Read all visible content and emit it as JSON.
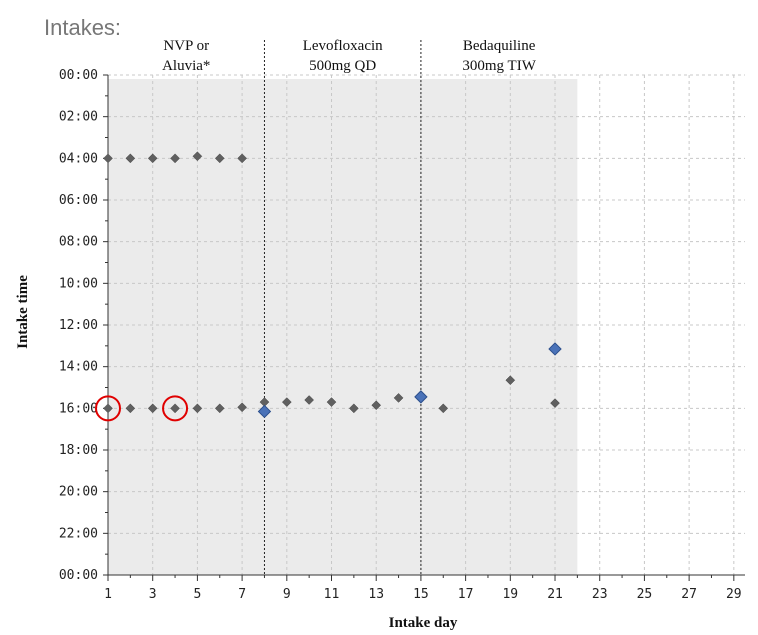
{
  "page_title": "Intakes:",
  "chart_data": {
    "type": "scatter",
    "title": "",
    "xlabel": "Intake day",
    "ylabel": "Intake time",
    "xlim": [
      1,
      29.5
    ],
    "ylim": [
      0,
      24
    ],
    "x_ticks": [
      "1",
      "3",
      "5",
      "7",
      "9",
      "11",
      "13",
      "15",
      "17",
      "19",
      "21",
      "23",
      "25",
      "27",
      "29"
    ],
    "y_ticks": [
      "00:00",
      "02:00",
      "04:00",
      "06:00",
      "08:00",
      "10:00",
      "12:00",
      "14:00",
      "16:00",
      "18:00",
      "20:00",
      "22:00",
      "00:00"
    ],
    "grid": true,
    "observation_period_days": [
      1,
      22
    ],
    "periods": [
      {
        "label_line1": "NVP or",
        "label_line2": "Aluvia*",
        "start_day": 1,
        "end_day": 8
      },
      {
        "label_line1": "Levofloxacin",
        "label_line2": "500mg QD",
        "start_day": 8,
        "end_day": 15
      },
      {
        "label_line1": "Bedaquiline",
        "label_line2": "300mg TIW",
        "start_day": 15,
        "end_day": 22
      }
    ],
    "series": [
      {
        "marker": "diamond-gray",
        "points": [
          [
            1,
            20.0
          ],
          [
            2,
            20.0
          ],
          [
            3,
            20.0
          ],
          [
            4,
            20.0
          ],
          [
            5,
            20.1
          ],
          [
            6,
            20.0
          ],
          [
            7,
            20.0
          ],
          [
            1,
            8.0
          ],
          [
            2,
            8.0
          ],
          [
            3,
            8.0
          ],
          [
            4,
            8.0
          ],
          [
            5,
            8.0
          ],
          [
            6,
            8.0
          ],
          [
            7,
            8.05
          ],
          [
            8,
            8.3
          ],
          [
            9,
            8.3
          ],
          [
            10,
            8.4
          ],
          [
            11,
            8.3
          ],
          [
            12,
            8.0
          ],
          [
            13,
            8.15
          ],
          [
            14,
            8.5
          ],
          [
            16,
            8.0
          ],
          [
            19,
            9.35
          ],
          [
            21,
            8.25
          ]
        ]
      },
      {
        "marker": "diamond-blue",
        "points": [
          [
            8,
            7.85
          ],
          [
            15,
            8.55
          ],
          [
            21,
            10.85
          ]
        ]
      }
    ],
    "missed_doses": [
      [
        1,
        8.0
      ],
      [
        4,
        8.0
      ]
    ],
    "colors": {
      "shade": "#ebebeb",
      "gray_marker": "#606060",
      "blue_marker": "#4a72b8",
      "missed_circle": "#e00000",
      "grid": "#c8c8c8"
    }
  }
}
